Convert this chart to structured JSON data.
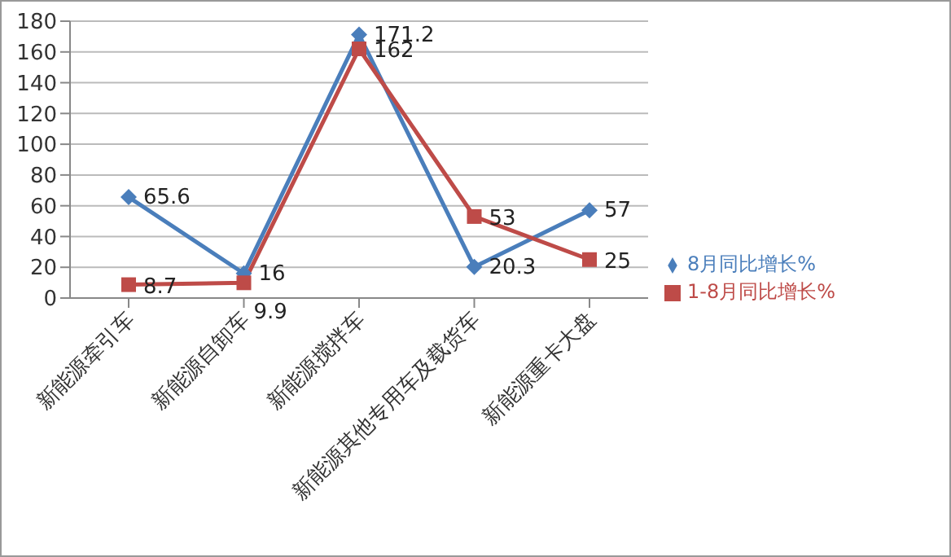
{
  "chart_data": {
    "type": "line",
    "categories": [
      "新能源牵引车",
      "新能源自卸车",
      "新能源搅拌车",
      "新能源其他专用车及载货车",
      "新能源重卡大盘"
    ],
    "series": [
      {
        "name": "8月同比增长%",
        "color": "#4a7ebb",
        "marker": "diamond",
        "values": [
          65.6,
          16,
          171.2,
          20.3,
          57
        ]
      },
      {
        "name": "1-8月同比增长%",
        "color": "#be4b48",
        "marker": "square",
        "values": [
          8.7,
          9.9,
          162,
          53,
          25
        ]
      }
    ],
    "ylim": [
      0,
      180
    ],
    "yticks": [
      0,
      20,
      40,
      60,
      80,
      100,
      120,
      140,
      160,
      180
    ],
    "grid": "y",
    "legend": "right",
    "data_labels": true
  }
}
